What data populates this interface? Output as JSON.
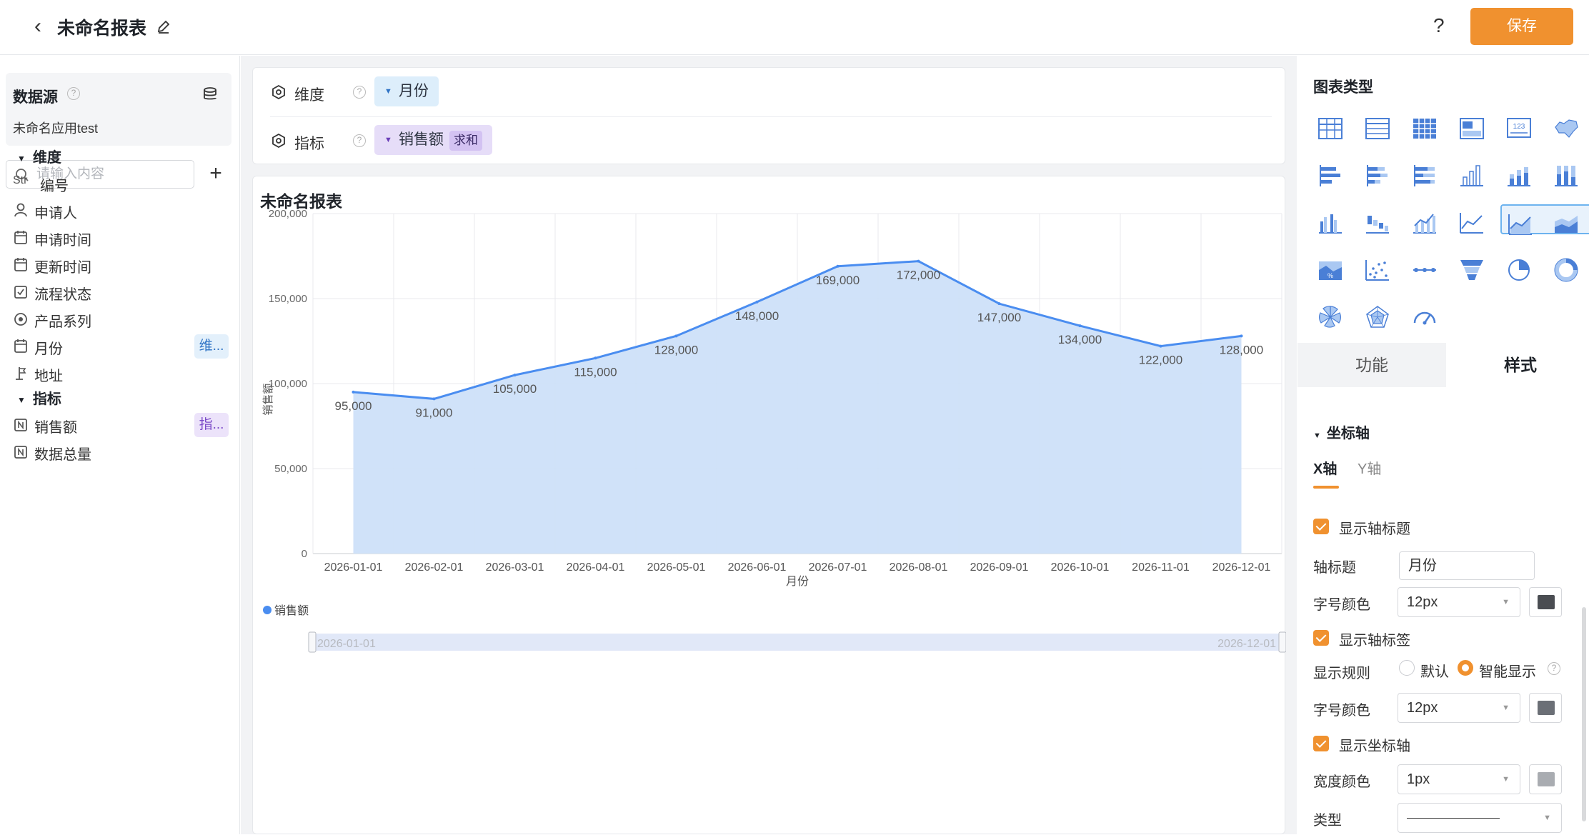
{
  "header": {
    "title": "未命名报表",
    "help": "?",
    "save_label": "保存"
  },
  "sidebar": {
    "datasource_label": "数据源",
    "app_name": "未命名应用test",
    "search_placeholder": "请输入内容",
    "dimension_section": "维度",
    "measure_section": "指标",
    "dimensions": [
      {
        "icon": "Str",
        "label": "编号"
      },
      {
        "icon": "person-icon",
        "label": "申请人"
      },
      {
        "icon": "calendar-icon",
        "label": "申请时间"
      },
      {
        "icon": "calendar-icon",
        "label": "更新时间"
      },
      {
        "icon": "checkbox-icon",
        "label": "流程状态"
      },
      {
        "icon": "radio-icon",
        "label": "产品系列"
      },
      {
        "icon": "calendar-icon",
        "label": "月份",
        "tag": "维..."
      },
      {
        "icon": "location-icon",
        "label": "地址"
      }
    ],
    "measures": [
      {
        "icon": "number-icon",
        "label": "销售额",
        "tag": "指..."
      },
      {
        "icon": "number-icon",
        "label": "数据总量"
      }
    ]
  },
  "config": {
    "dimension_label": "维度",
    "dimension_chip": "月份",
    "measure_label": "指标",
    "measure_chip": "销售额",
    "measure_agg": "求和"
  },
  "chart_title": "未命名报表",
  "chart_data": {
    "type": "area",
    "title": "未命名报表",
    "xlabel": "月份",
    "ylabel": "销售额",
    "categories": [
      "2026-01-01",
      "2026-02-01",
      "2026-03-01",
      "2026-04-01",
      "2026-05-01",
      "2026-06-01",
      "2026-07-01",
      "2026-08-01",
      "2026-09-01",
      "2026-10-01",
      "2026-11-01",
      "2026-12-01"
    ],
    "series": [
      {
        "name": "销售额",
        "values": [
          95000,
          91000,
          105000,
          115000,
          128000,
          148000,
          169000,
          172000,
          147000,
          134000,
          122000,
          128000
        ]
      }
    ],
    "ylim": [
      0,
      200000
    ],
    "yticks": [
      "0",
      "50,000",
      "100,000",
      "150,000",
      "200,000"
    ],
    "data_labels": [
      "95,000",
      "91,000",
      "105,000",
      "115,000",
      "128,000",
      "148,000",
      "169,000",
      "172,000",
      "147,000",
      "134,000",
      "122,000",
      "128,000"
    ],
    "grid": true,
    "legend": "bottom-left",
    "color": "#4a8df0",
    "fill": "#cde0f9",
    "zoom_start": "2026-01-01",
    "zoom_end": "2026-12-01"
  },
  "right_panel": {
    "chart_type_label": "图表类型",
    "chart_type_icons_label": "123",
    "tab_function": "功能",
    "tab_style": "样式",
    "axis_section": "坐标轴",
    "x_axis_tab": "X轴",
    "y_axis_tab": "Y轴",
    "show_axis_title": "显示轴标题",
    "axis_title_label": "轴标题",
    "axis_title_value": "月份",
    "font_color_label": "字号颜色",
    "font_size_1": "12px",
    "show_axis_label": "显示轴标签",
    "display_rule_label": "显示规则",
    "rule_default": "默认",
    "rule_smart": "智能显示",
    "font_color_label_2": "字号颜色",
    "font_size_2": "12px",
    "show_axis_line": "显示坐标轴",
    "width_color_label": "宽度颜色",
    "width_value": "1px",
    "type_label": "类型",
    "swatch1": "#4a4d52",
    "swatch2": "#6b6f76",
    "swatch3": "#a9acb1"
  }
}
